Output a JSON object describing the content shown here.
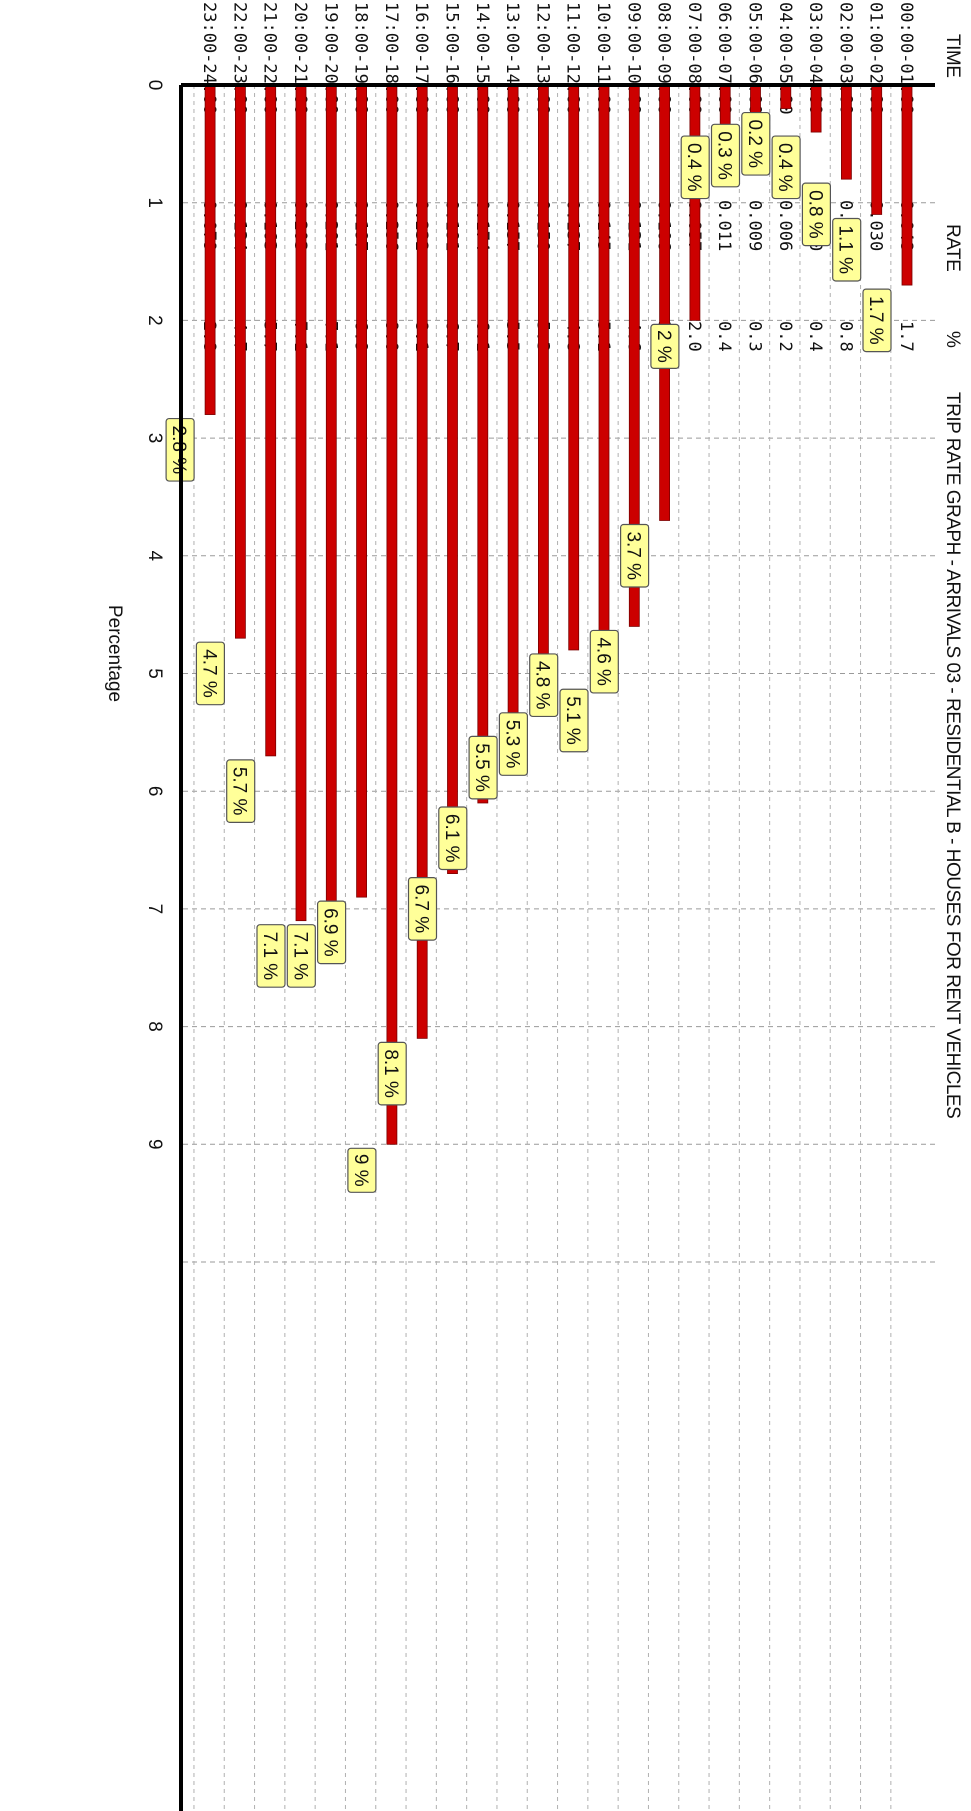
{
  "header": {
    "time_label": "TIME",
    "rate_label": "RATE",
    "pct_label": "%",
    "title": "TRIP RATE GRAPH - ARRIVALS 03 - RESIDENTIAL B - HOUSES FOR RENT VEHICLES"
  },
  "chart_data": {
    "type": "bar",
    "orientation": "horizontal",
    "title": "TRIP RATE GRAPH - ARRIVALS 03 - RESIDENTIAL B - HOUSES FOR RENT VEHICLES",
    "xlabel": "Percentage",
    "ylabel": "",
    "xlim": [
      0,
      10
    ],
    "xticks": [
      "0",
      "1",
      "2",
      "3",
      "4",
      "5",
      "6",
      "7",
      "8",
      "9"
    ],
    "grid": true,
    "bar_color": "#cc0000",
    "label_bg": "#ffff99",
    "rows": [
      {
        "time": "00:00-01:00",
        "rate": "0.048",
        "pct_text": "1.7",
        "value": 1.7,
        "label": "1.7 %"
      },
      {
        "time": "01:00-02:00",
        "rate": "0.030",
        "pct_text": "1.1",
        "value": 1.1,
        "label": "1.1 %"
      },
      {
        "time": "02:00-03:00",
        "rate": "0.023",
        "pct_text": "0.8",
        "value": 0.8,
        "label": "0.8 %"
      },
      {
        "time": "03:00-04:00",
        "rate": "0.010",
        "pct_text": "0.4",
        "value": 0.4,
        "label": "0.4 %"
      },
      {
        "time": "04:00-05:00",
        "rate": "0.006",
        "pct_text": "0.2",
        "value": 0.2,
        "label": "0.2 %"
      },
      {
        "time": "05:00-06:00",
        "rate": "0.009",
        "pct_text": "0.3",
        "value": 0.3,
        "label": "0.3 %"
      },
      {
        "time": "06:00-07:00",
        "rate": "0.011",
        "pct_text": "0.4",
        "value": 0.4,
        "label": "0.4 %"
      },
      {
        "time": "07:00-08:00",
        "rate": "0.057",
        "pct_text": "2.0",
        "value": 2.0,
        "label": "2 %"
      },
      {
        "time": "08:00-09:00",
        "rate": "0.106",
        "pct_text": "3.7",
        "value": 3.7,
        "label": "3.7 %"
      },
      {
        "time": "09:00-10:00",
        "rate": "0.131",
        "pct_text": "4.6",
        "value": 4.6,
        "label": "4.6 %"
      },
      {
        "time": "10:00-11:00",
        "rate": "0.145",
        "pct_text": "5.1",
        "value": 5.1,
        "label": "5.1 %"
      },
      {
        "time": "11:00-12:00",
        "rate": "0.137",
        "pct_text": "4.8",
        "value": 4.8,
        "label": "4.8 %"
      },
      {
        "time": "12:00-13:00",
        "rate": "0.150",
        "pct_text": "5.3",
        "value": 5.3,
        "label": "5.3 %"
      },
      {
        "time": "13:00-14:00",
        "rate": "0.157",
        "pct_text": "5.5",
        "value": 5.5,
        "label": "5.5 %"
      },
      {
        "time": "14:00-15:00",
        "rate": "0.174",
        "pct_text": "6.1",
        "value": 6.1,
        "label": "6.1 %"
      },
      {
        "time": "15:00-16:00",
        "rate": "0.191",
        "pct_text": "6.7",
        "value": 6.7,
        "label": "6.7 %"
      },
      {
        "time": "16:00-17:00",
        "rate": "0.232",
        "pct_text": "8.1",
        "value": 8.1,
        "label": "8.1 %"
      },
      {
        "time": "17:00-18:00",
        "rate": "0.256",
        "pct_text": "9.0",
        "value": 9.0,
        "label": "9 %"
      },
      {
        "time": "18:00-19:00",
        "rate": "0.197",
        "pct_text": "6.9",
        "value": 6.9,
        "label": "6.9 %"
      },
      {
        "time": "19:00-20:00",
        "rate": "0.201",
        "pct_text": "7.1",
        "value": 7.1,
        "label": "7.1 %"
      },
      {
        "time": "20:00-21:00",
        "rate": "0.203",
        "pct_text": "7.1",
        "value": 7.1,
        "label": "7.1 %"
      },
      {
        "time": "21:00-22:00",
        "rate": "0.163",
        "pct_text": "5.7",
        "value": 5.7,
        "label": "5.7 %"
      },
      {
        "time": "22:00-23:00",
        "rate": "0.134",
        "pct_text": "4.7",
        "value": 4.7,
        "label": "4.7 %"
      },
      {
        "time": "23:00-24:00",
        "rate": "0.079",
        "pct_text": "2.8",
        "value": 2.8,
        "label": "2.8 %"
      }
    ]
  }
}
